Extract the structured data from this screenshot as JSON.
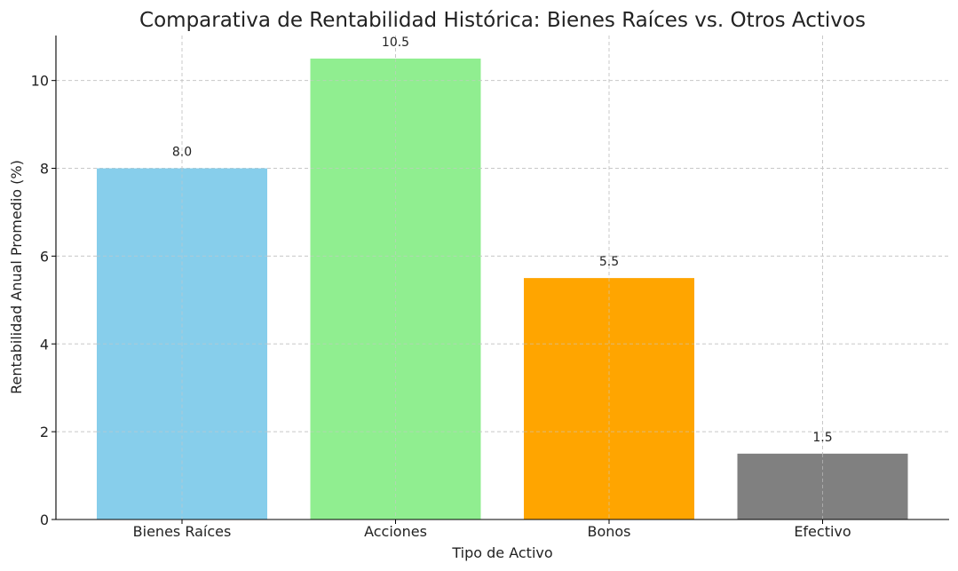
{
  "chart_data": {
    "type": "bar",
    "title": "Comparativa de Rentabilidad Histórica: Bienes Raíces vs. Otros Activos",
    "xlabel": "Tipo de Activo",
    "ylabel": "Rentabilidad Anual Promedio (%)",
    "categories": [
      "Bienes Raíces",
      "Acciones",
      "Bonos",
      "Efectivo"
    ],
    "values": [
      8.0,
      10.5,
      5.5,
      1.5
    ],
    "value_labels": [
      "8.0",
      "10.5",
      "5.5",
      "1.5"
    ],
    "colors": [
      "#87ceeb",
      "#90ee90",
      "#ffa500",
      "#808080"
    ],
    "ylim": [
      0,
      11.025
    ],
    "yticks": [
      0,
      2,
      4,
      6,
      8,
      10
    ],
    "grid": true,
    "legend": "none"
  }
}
